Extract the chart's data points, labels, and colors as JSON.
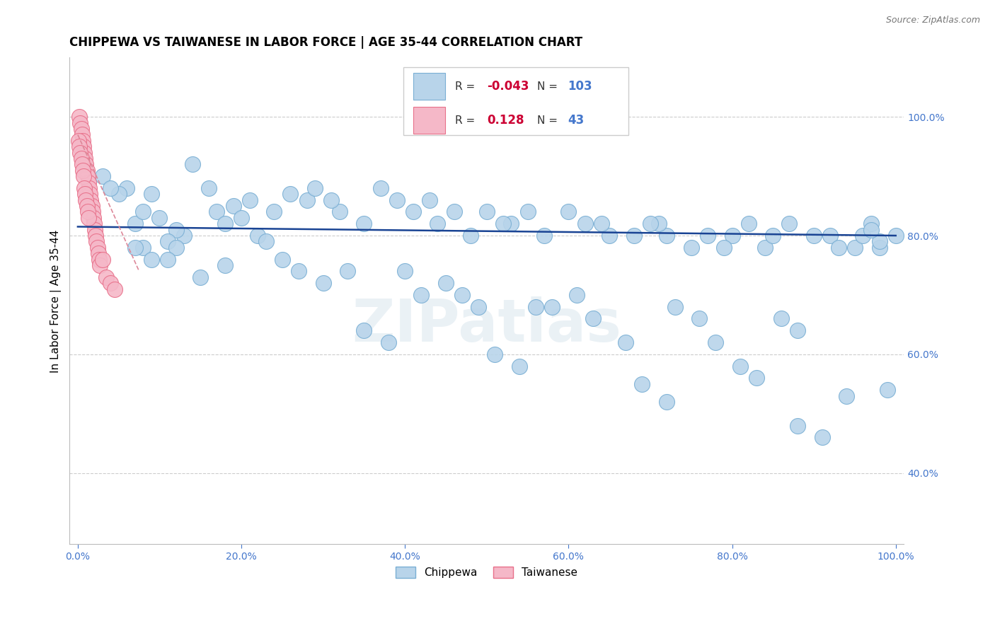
{
  "title": "CHIPPEWA VS TAIWANESE IN LABOR FORCE | AGE 35-44 CORRELATION CHART",
  "source": "Source: ZipAtlas.com",
  "ylabel": "In Labor Force | Age 35-44",
  "xlim": [
    -0.01,
    1.01
  ],
  "ylim": [
    0.28,
    1.1
  ],
  "yticks": [
    0.4,
    0.6,
    0.8,
    1.0
  ],
  "ytick_labels": [
    "40.0%",
    "60.0%",
    "80.0%",
    "100.0%"
  ],
  "xticks": [
    0.0,
    0.2,
    0.4,
    0.6,
    0.8,
    1.0
  ],
  "xtick_labels": [
    "0.0%",
    "20.0%",
    "40.0%",
    "60.0%",
    "80.0%",
    "100.0%"
  ],
  "chippewa_R": -0.043,
  "chippewa_N": 103,
  "taiwanese_R": 0.128,
  "taiwanese_N": 43,
  "blue_color": "#b8d4ea",
  "pink_color": "#f5b8c8",
  "blue_edge": "#7aafd4",
  "pink_edge": "#e8708a",
  "trend_blue": "#1a4494",
  "trend_pink": "#dd8899",
  "grid_color": "#cccccc",
  "tick_color": "#4477cc",
  "watermark": "ZIPatlas",
  "legend_blue_R": "-0.043",
  "legend_blue_N": "103",
  "legend_pink_R": "0.128",
  "legend_pink_N": "43",
  "chippewa_x": [
    0.14,
    0.06,
    0.09,
    0.16,
    0.17,
    0.19,
    0.2,
    0.21,
    0.07,
    0.08,
    0.1,
    0.13,
    0.05,
    0.12,
    0.11,
    0.18,
    0.22,
    0.08,
    0.09,
    0.12,
    0.28,
    0.32,
    0.35,
    0.29,
    0.31,
    0.24,
    0.26,
    0.41,
    0.44,
    0.48,
    0.43,
    0.46,
    0.53,
    0.57,
    0.55,
    0.62,
    0.65,
    0.6,
    0.64,
    0.72,
    0.75,
    0.71,
    0.8,
    0.84,
    0.82,
    0.85,
    0.87,
    0.92,
    0.95,
    0.97,
    0.96,
    0.98,
    0.37,
    0.39,
    0.5,
    0.52,
    0.68,
    0.7,
    0.77,
    0.79,
    0.9,
    0.93,
    0.15,
    0.18,
    0.3,
    0.33,
    0.42,
    0.45,
    0.58,
    0.61,
    0.73,
    0.76,
    0.86,
    0.88,
    0.03,
    0.04,
    0.25,
    0.27,
    0.47,
    0.49,
    0.63,
    0.67,
    0.81,
    0.83,
    0.94,
    0.99,
    0.07,
    0.11,
    0.35,
    0.38,
    0.51,
    0.54,
    0.69,
    0.72,
    0.88,
    0.91,
    0.23,
    0.4,
    0.56,
    0.78,
    1.0,
    0.98,
    0.97
  ],
  "chippewa_y": [
    0.92,
    0.88,
    0.87,
    0.88,
    0.84,
    0.85,
    0.83,
    0.86,
    0.82,
    0.84,
    0.83,
    0.8,
    0.87,
    0.81,
    0.79,
    0.82,
    0.8,
    0.78,
    0.76,
    0.78,
    0.86,
    0.84,
    0.82,
    0.88,
    0.86,
    0.84,
    0.87,
    0.84,
    0.82,
    0.8,
    0.86,
    0.84,
    0.82,
    0.8,
    0.84,
    0.82,
    0.8,
    0.84,
    0.82,
    0.8,
    0.78,
    0.82,
    0.8,
    0.78,
    0.82,
    0.8,
    0.82,
    0.8,
    0.78,
    0.82,
    0.8,
    0.78,
    0.88,
    0.86,
    0.84,
    0.82,
    0.8,
    0.82,
    0.8,
    0.78,
    0.8,
    0.78,
    0.73,
    0.75,
    0.72,
    0.74,
    0.7,
    0.72,
    0.68,
    0.7,
    0.68,
    0.66,
    0.66,
    0.64,
    0.9,
    0.88,
    0.76,
    0.74,
    0.7,
    0.68,
    0.66,
    0.62,
    0.58,
    0.56,
    0.53,
    0.54,
    0.78,
    0.76,
    0.64,
    0.62,
    0.6,
    0.58,
    0.55,
    0.52,
    0.48,
    0.46,
    0.79,
    0.74,
    0.68,
    0.62,
    0.8,
    0.79,
    0.81
  ],
  "taiwanese_x": [
    0.002,
    0.003,
    0.004,
    0.005,
    0.006,
    0.007,
    0.008,
    0.009,
    0.01,
    0.011,
    0.012,
    0.013,
    0.014,
    0.015,
    0.016,
    0.017,
    0.018,
    0.019,
    0.02,
    0.021,
    0.022,
    0.023,
    0.024,
    0.025,
    0.026,
    0.027,
    0.001,
    0.002,
    0.003,
    0.004,
    0.005,
    0.006,
    0.007,
    0.008,
    0.009,
    0.01,
    0.011,
    0.012,
    0.013,
    0.03,
    0.035,
    0.04,
    0.045
  ],
  "taiwanese_y": [
    1.0,
    0.99,
    0.98,
    0.97,
    0.96,
    0.95,
    0.94,
    0.93,
    0.92,
    0.91,
    0.9,
    0.89,
    0.88,
    0.87,
    0.86,
    0.85,
    0.84,
    0.83,
    0.82,
    0.81,
    0.8,
    0.79,
    0.78,
    0.77,
    0.76,
    0.75,
    0.96,
    0.95,
    0.94,
    0.93,
    0.92,
    0.91,
    0.9,
    0.88,
    0.87,
    0.86,
    0.85,
    0.84,
    0.83,
    0.76,
    0.73,
    0.72,
    0.71
  ]
}
